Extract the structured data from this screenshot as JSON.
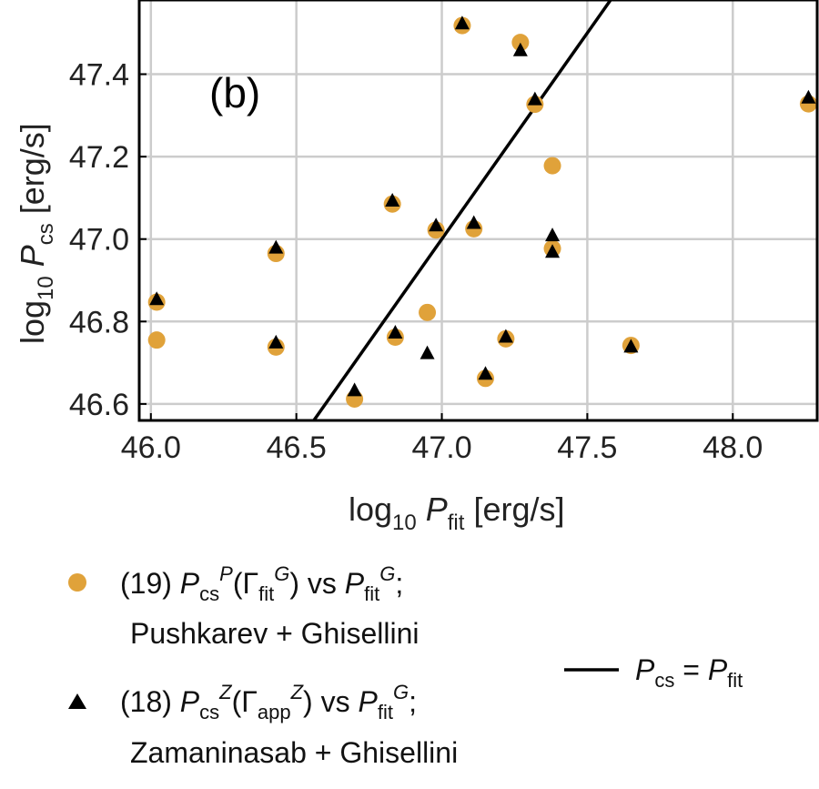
{
  "chart_data": {
    "type": "scatter",
    "panel_label": "(b)",
    "xlabel": {
      "main": "log",
      "sub": "10",
      "var": "P",
      "varsub": "fit",
      "unit": "[erg/s]"
    },
    "ylabel": {
      "main": "log",
      "sub": "10",
      "var": "P",
      "varsub": "cs",
      "unit": "[erg/s]"
    },
    "xlim": [
      45.96,
      48.29
    ],
    "ylim": [
      46.56,
      47.58
    ],
    "x_ticks": [
      "46.0",
      "46.5",
      "47.0",
      "47.5",
      "48.0"
    ],
    "x_tick_values": [
      46.0,
      46.5,
      47.0,
      47.5,
      48.0
    ],
    "y_ticks": [
      "46.6",
      "46.8",
      "47.0",
      "47.2",
      "47.4"
    ],
    "y_tick_values": [
      46.6,
      46.8,
      47.0,
      47.2,
      47.4
    ],
    "grid": true,
    "colors": {
      "circle": "#e0a23a",
      "triangle": "#000000",
      "line": "#000000",
      "grid": "#cccccc"
    },
    "series": [
      {
        "name": "Pushkarev + Ghisellini",
        "marker": "circle",
        "x": [
          46.02,
          46.02,
          46.43,
          46.43,
          46.7,
          46.83,
          46.84,
          46.95,
          46.98,
          47.07,
          47.11,
          47.15,
          47.22,
          47.27,
          47.32,
          47.38,
          47.38,
          47.65,
          48.26
        ],
        "y": [
          46.847,
          46.755,
          46.965,
          46.738,
          46.612,
          47.085,
          46.762,
          46.822,
          47.022,
          47.518,
          47.025,
          46.662,
          46.758,
          47.477,
          47.327,
          47.178,
          46.977,
          46.742,
          47.328
        ]
      },
      {
        "name": "Zamaninasab + Ghisellini",
        "marker": "triangle",
        "x": [
          46.02,
          46.43,
          46.43,
          46.7,
          46.83,
          46.84,
          46.95,
          46.98,
          47.07,
          47.11,
          47.15,
          47.22,
          47.27,
          47.32,
          47.38,
          47.38,
          47.65,
          48.26
        ],
        "y": [
          46.853,
          46.978,
          46.748,
          46.632,
          47.092,
          46.772,
          46.722,
          47.032,
          47.522,
          47.038,
          46.672,
          46.762,
          47.457,
          47.338,
          47.008,
          46.968,
          46.738,
          47.342
        ]
      }
    ],
    "reference_line": {
      "name": "P_cs = P_fit",
      "slope": 1,
      "intercept": 0
    },
    "legend": {
      "circle": {
        "line1": {
          "num": "(19) ",
          "v1": "P",
          "s1": "cs",
          "sup1": "P",
          "paren_open": "(Γ",
          "s2": "fit",
          "sup2": "G",
          "mid": ") vs ",
          "v2": "P",
          "s3": "fit",
          "sup3": "G",
          "end": ";"
        },
        "line2": "Pushkarev + Ghisellini"
      },
      "triangle": {
        "line1": {
          "num": "(18) ",
          "v1": "P",
          "s1": "cs",
          "sup1": "Z",
          "paren_open": "(Γ",
          "s2": "app",
          "sup2": "Z",
          "mid": ") vs ",
          "v2": "P",
          "s3": "fit",
          "sup3": "G",
          "end": ";"
        },
        "line2": "Zamaninasab + Ghisellini"
      },
      "line": {
        "v1": "P",
        "s1": "cs",
        "eq": " = ",
        "v2": "P",
        "s2": "fit"
      }
    }
  }
}
